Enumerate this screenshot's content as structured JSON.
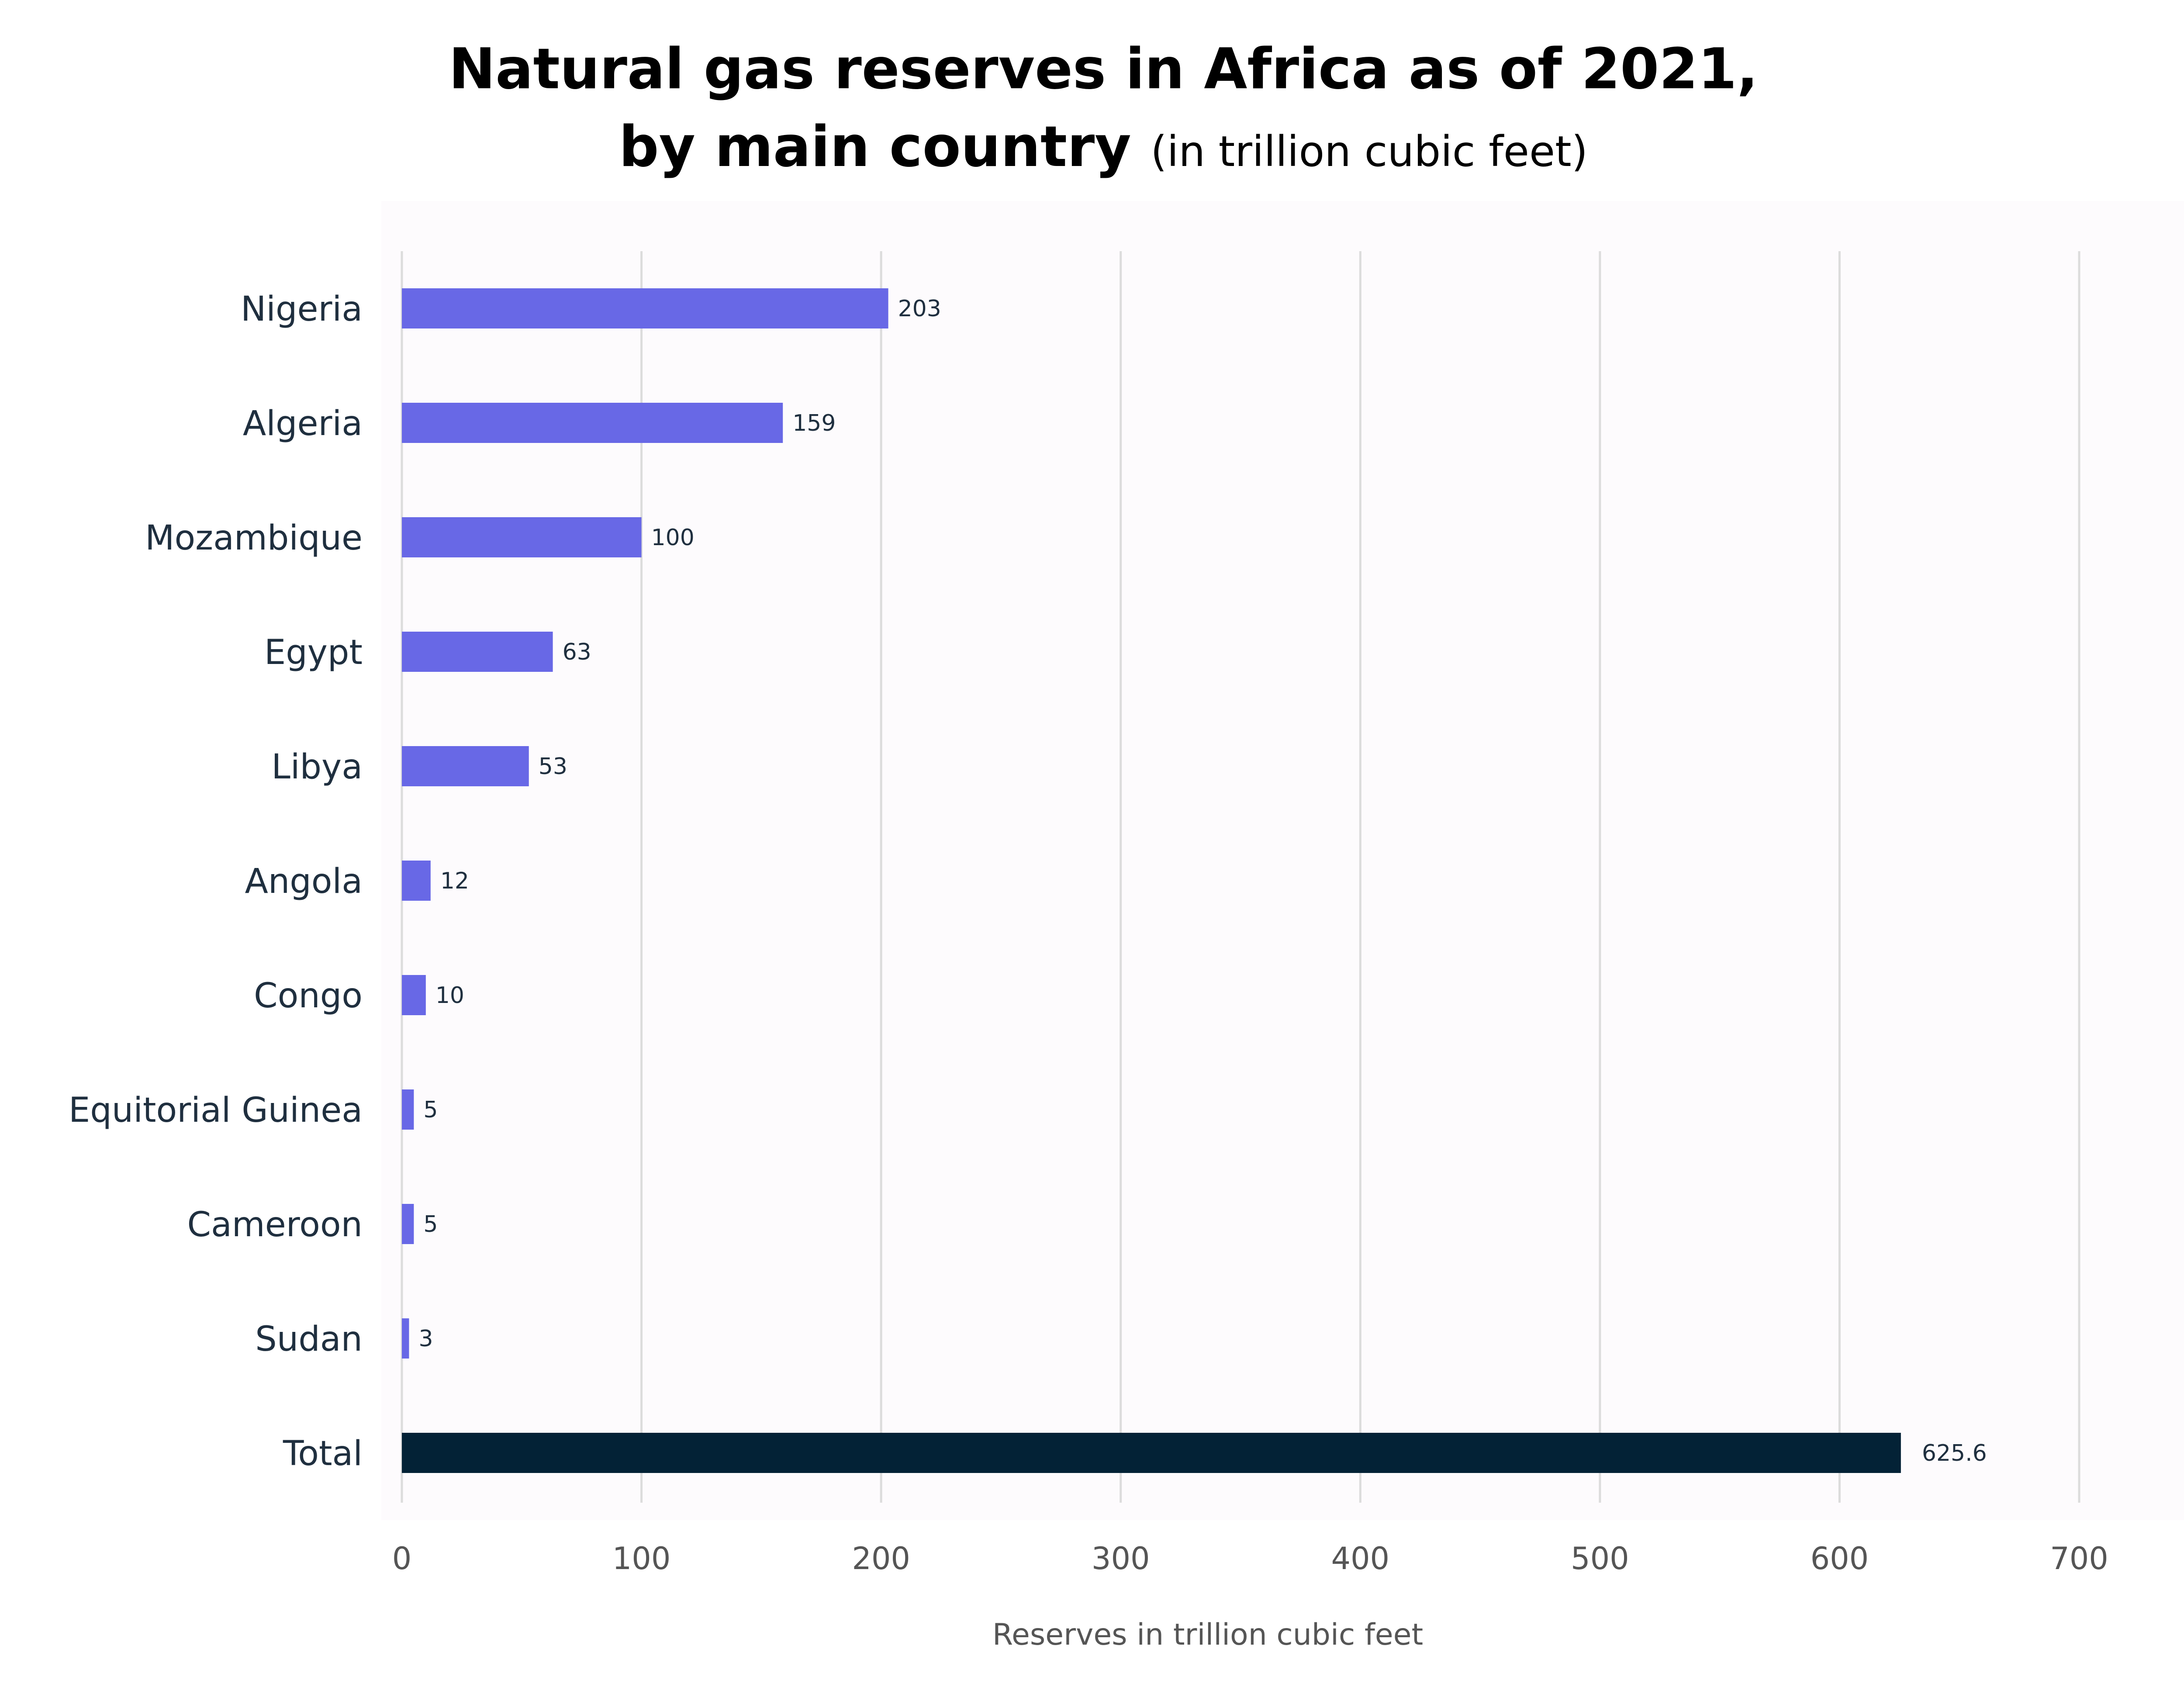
{
  "title": {
    "line1": "Natural gas reserves in Africa as of 2021,",
    "line2_bold": "by main country",
    "line2_sub": "(in trillion cubic feet)"
  },
  "chart_data": {
    "type": "bar",
    "orientation": "horizontal",
    "categories": [
      "Nigeria",
      "Algeria",
      "Mozambique",
      "Egypt",
      "Libya",
      "Angola",
      "Congo",
      "Equitorial Guinea",
      "Cameroon",
      "Sudan",
      "Total"
    ],
    "values": [
      203,
      159,
      100,
      63,
      53,
      12,
      10,
      5,
      5,
      3,
      625.6
    ],
    "data_labels": [
      "203",
      "159",
      "100",
      "63",
      "53",
      "12",
      "10",
      "5",
      "5",
      "3",
      "625.6"
    ],
    "xlabel": "Reserves in trillion cubic feet",
    "ylabel": "",
    "xlim": [
      0,
      700
    ],
    "xticks": [
      0,
      100,
      200,
      300,
      400,
      500,
      600,
      700
    ],
    "xtick_labels": [
      "0",
      "100",
      "200",
      "300",
      "400",
      "500",
      "600",
      "700"
    ],
    "grid": "vertical",
    "legend": "none",
    "colors": {
      "bar": "#6868e6",
      "total_bar": "#032236",
      "grid": "#dcdcdc",
      "category_label": "#1f2f3f",
      "tick_label": "#555555",
      "data_label": "#1f2f3f",
      "plot_background": "#fdfbfd"
    }
  }
}
